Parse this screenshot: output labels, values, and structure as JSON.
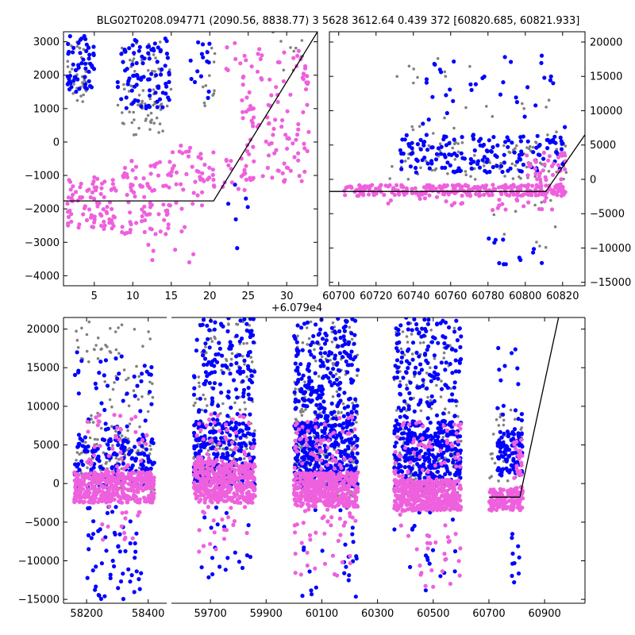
{
  "figure_title": "BLG02T0208.094771 (2090.56, 8838.77)   3 5628 3612.64 0.439 372 [60820.685, 60821.933]",
  "colors": {
    "gray": "#808080",
    "blue": "#0000ff",
    "pink": "#ee60dd",
    "model": "#000000"
  },
  "chart_data": [
    {
      "id": "phased-zoom",
      "type": "scatter",
      "title": "",
      "xlabel": "",
      "ylabel": "",
      "xlim": [
        1,
        34
      ],
      "ylim": [
        -4300,
        3300
      ],
      "x_offset_label": "+6.079e4",
      "xticks": [
        5,
        10,
        15,
        20,
        25,
        30
      ],
      "yticks": [
        -4000,
        -3000,
        -2000,
        -1000,
        0,
        1000,
        2000,
        3000
      ],
      "series": [
        {
          "name": "gray",
          "color": "gray",
          "clusters": [
            {
              "x": [
                1.5,
                4.5
              ],
              "y": [
                1200,
                3100
              ],
              "n": 45
            },
            {
              "x": [
                8,
                15
              ],
              "y": [
                200,
                3000
              ],
              "n": 55
            },
            {
              "x": [
                10,
                14
              ],
              "y": [
                300,
                1200
              ],
              "n": 25
            },
            {
              "x": [
                19,
                21
              ],
              "y": [
                1000,
                3000
              ],
              "n": 12
            },
            {
              "x": [
                28,
                33
              ],
              "y": [
                2000,
                3300
              ],
              "n": 10
            }
          ]
        },
        {
          "name": "blue",
          "color": "blue",
          "clusters": [
            {
              "x": [
                1.5,
                5
              ],
              "y": [
                1500,
                3200
              ],
              "n": 55
            },
            {
              "x": [
                8,
                15
              ],
              "y": [
                1000,
                3100
              ],
              "n": 90
            },
            {
              "x": [
                17,
                20
              ],
              "y": [
                1300,
                3000
              ],
              "n": 15
            },
            {
              "x": [
                22,
                25
              ],
              "y": [
                -3600,
                -1000
              ],
              "n": 6
            }
          ]
        },
        {
          "name": "pink",
          "color": "pink",
          "clusters": [
            {
              "x": [
                1.5,
                8
              ],
              "y": [
                -2600,
                -1000
              ],
              "n": 85
            },
            {
              "x": [
                8.5,
                15
              ],
              "y": [
                -2800,
                -500
              ],
              "n": 80
            },
            {
              "x": [
                15,
                21
              ],
              "y": [
                -2000,
                0
              ],
              "n": 45
            },
            {
              "x": [
                12,
                20
              ],
              "y": [
                -3700,
                -2500
              ],
              "n": 10
            },
            {
              "x": [
                21,
                25
              ],
              "y": [
                -1500,
                -200
              ],
              "n": 15
            },
            {
              "x": [
                24,
                33
              ],
              "y": [
                -1200,
                2800
              ],
              "n": 120
            },
            {
              "x": [
                22,
                24
              ],
              "y": [
                2000,
                3000
              ],
              "n": 6
            }
          ]
        }
      ],
      "model_line": {
        "x": [
          1,
          20.5,
          34
        ],
        "y": [
          -1760,
          -1760,
          3300
        ]
      }
    },
    {
      "id": "recent-window",
      "type": "scatter",
      "title": "",
      "xlabel": "",
      "ylabel": "",
      "xlim": [
        60695,
        60832
      ],
      "ylim": [
        -15500,
        21500
      ],
      "xticks": [
        60700,
        60720,
        60740,
        60760,
        60780,
        60800,
        60820
      ],
      "yticks": [
        -15000,
        -10000,
        -5000,
        0,
        5000,
        10000,
        15000,
        20000
      ],
      "series": [
        {
          "name": "gray",
          "color": "gray",
          "clusters": [
            {
              "x": [
                60727,
                60822
              ],
              "y": [
                0,
                6000
              ],
              "n": 90
            },
            {
              "x": [
                60727,
                60822
              ],
              "y": [
                6000,
                18000
              ],
              "n": 25
            },
            {
              "x": [
                60775,
                60822
              ],
              "y": [
                -10000,
                -3000
              ],
              "n": 10
            }
          ]
        },
        {
          "name": "blue",
          "color": "blue",
          "clusters": [
            {
              "x": [
                60732,
                60822
              ],
              "y": [
                1000,
                6500
              ],
              "n": 160
            },
            {
              "x": [
                60745,
                60822
              ],
              "y": [
                6500,
                18500
              ],
              "n": 35
            },
            {
              "x": [
                60780,
                60812
              ],
              "y": [
                -13000,
                -6000
              ],
              "n": 12
            }
          ]
        },
        {
          "name": "pink",
          "color": "pink",
          "clusters": [
            {
              "x": [
                60703,
                60822
              ],
              "y": [
                -2400,
                -800
              ],
              "n": 260
            },
            {
              "x": [
                60800,
                60822
              ],
              "y": [
                -1500,
                4000
              ],
              "n": 40
            },
            {
              "x": [
                60725,
                60815
              ],
              "y": [
                -4500,
                -2500
              ],
              "n": 25
            }
          ]
        }
      ],
      "model_line": {
        "x": [
          60695,
          60811,
          60832
        ],
        "y": [
          -1760,
          -1760,
          6500
        ]
      }
    },
    {
      "id": "full-lightcurve",
      "type": "scatter",
      "title": "",
      "xlabel": "",
      "ylabel": "",
      "xlim": [
        58125,
        61045
      ],
      "ylim": [
        -15500,
        21500
      ],
      "broken_axis_gap_label": "axis break between seasons",
      "xticks": [
        58200,
        58400,
        59700,
        59900,
        60100,
        60300,
        60500,
        60700,
        60900
      ],
      "yticks": [
        -15000,
        -10000,
        -5000,
        0,
        5000,
        10000,
        15000,
        20000
      ],
      "series": [
        {
          "name": "gray",
          "color": "gray",
          "clusters": [
            {
              "x": [
                58160,
                58420
              ],
              "y": [
                -2000,
                6000
              ],
              "n": 120
            },
            {
              "x": [
                58160,
                58420
              ],
              "y": [
                6000,
                21000
              ],
              "n": 70
            },
            {
              "x": [
                59640,
                59860
              ],
              "y": [
                -2000,
                6000
              ],
              "n": 130
            },
            {
              "x": [
                59640,
                59860
              ],
              "y": [
                6000,
                21000
              ],
              "n": 80
            },
            {
              "x": [
                60000,
                60230
              ],
              "y": [
                -2000,
                6000
              ],
              "n": 160
            },
            {
              "x": [
                60000,
                60230
              ],
              "y": [
                6000,
                21000
              ],
              "n": 100
            },
            {
              "x": [
                60360,
                60600
              ],
              "y": [
                -2000,
                6000
              ],
              "n": 150
            },
            {
              "x": [
                60360,
                60600
              ],
              "y": [
                6000,
                21000
              ],
              "n": 80
            },
            {
              "x": [
                60700,
                60822
              ],
              "y": [
                0,
                10000
              ],
              "n": 40
            }
          ]
        },
        {
          "name": "blue",
          "color": "blue",
          "clusters": [
            {
              "x": [
                58160,
                58420
              ],
              "y": [
                -500,
                6000
              ],
              "n": 170
            },
            {
              "x": [
                58160,
                58420
              ],
              "y": [
                6000,
                17000
              ],
              "n": 45
            },
            {
              "x": [
                58200,
                58380
              ],
              "y": [
                -15000,
                -3000
              ],
              "n": 55
            },
            {
              "x": [
                59640,
                59860
              ],
              "y": [
                -500,
                8000
              ],
              "n": 260
            },
            {
              "x": [
                59640,
                59860
              ],
              "y": [
                8000,
                21500
              ],
              "n": 130
            },
            {
              "x": [
                59650,
                59860
              ],
              "y": [
                -13000,
                -3000
              ],
              "n": 20
            },
            {
              "x": [
                60000,
                60230
              ],
              "y": [
                -500,
                8000
              ],
              "n": 360
            },
            {
              "x": [
                60000,
                60230
              ],
              "y": [
                8000,
                21500
              ],
              "n": 220
            },
            {
              "x": [
                60000,
                60230
              ],
              "y": [
                -15000,
                -3000
              ],
              "n": 25
            },
            {
              "x": [
                60360,
                60600
              ],
              "y": [
                -500,
                8000
              ],
              "n": 320
            },
            {
              "x": [
                60360,
                60600
              ],
              "y": [
                8000,
                21500
              ],
              "n": 160
            },
            {
              "x": [
                60360,
                60600
              ],
              "y": [
                -14000,
                -3000
              ],
              "n": 20
            },
            {
              "x": [
                60730,
                60820
              ],
              "y": [
                1000,
                6500
              ],
              "n": 90
            },
            {
              "x": [
                60730,
                60820
              ],
              "y": [
                6500,
                18000
              ],
              "n": 20
            },
            {
              "x": [
                60780,
                60815
              ],
              "y": [
                -13000,
                -6000
              ],
              "n": 10
            }
          ]
        },
        {
          "name": "pink",
          "color": "pink",
          "clusters": [
            {
              "x": [
                58160,
                58420
              ],
              "y": [
                -2500,
                1500
              ],
              "n": 420
            },
            {
              "x": [
                58200,
                58400
              ],
              "y": [
                1500,
                9000
              ],
              "n": 40
            },
            {
              "x": [
                58200,
                58400
              ],
              "y": [
                -8000,
                -2500
              ],
              "n": 15
            },
            {
              "x": [
                59640,
                59860
              ],
              "y": [
                -2500,
                3000
              ],
              "n": 420
            },
            {
              "x": [
                59650,
                59860
              ],
              "y": [
                3000,
                9000
              ],
              "n": 40
            },
            {
              "x": [
                59650,
                59860
              ],
              "y": [
                -9000,
                -2500
              ],
              "n": 20
            },
            {
              "x": [
                60000,
                60230
              ],
              "y": [
                -3000,
                1500
              ],
              "n": 430
            },
            {
              "x": [
                60000,
                60230
              ],
              "y": [
                1500,
                9000
              ],
              "n": 60
            },
            {
              "x": [
                60000,
                60230
              ],
              "y": [
                -12000,
                -3000
              ],
              "n": 40
            },
            {
              "x": [
                60360,
                60600
              ],
              "y": [
                -3500,
                500
              ],
              "n": 450
            },
            {
              "x": [
                60360,
                60600
              ],
              "y": [
                500,
                8000
              ],
              "n": 60
            },
            {
              "x": [
                60360,
                60600
              ],
              "y": [
                -14000,
                -3500
              ],
              "n": 30
            },
            {
              "x": [
                60700,
                60822
              ],
              "y": [
                -3500,
                -700
              ],
              "n": 130
            },
            {
              "x": [
                60790,
                60822
              ],
              "y": [
                -700,
                6000
              ],
              "n": 25
            }
          ]
        }
      ],
      "model_line": {
        "x": [
          60700,
          60811,
          60950
        ],
        "y": [
          -1760,
          -1760,
          21500
        ]
      }
    }
  ]
}
